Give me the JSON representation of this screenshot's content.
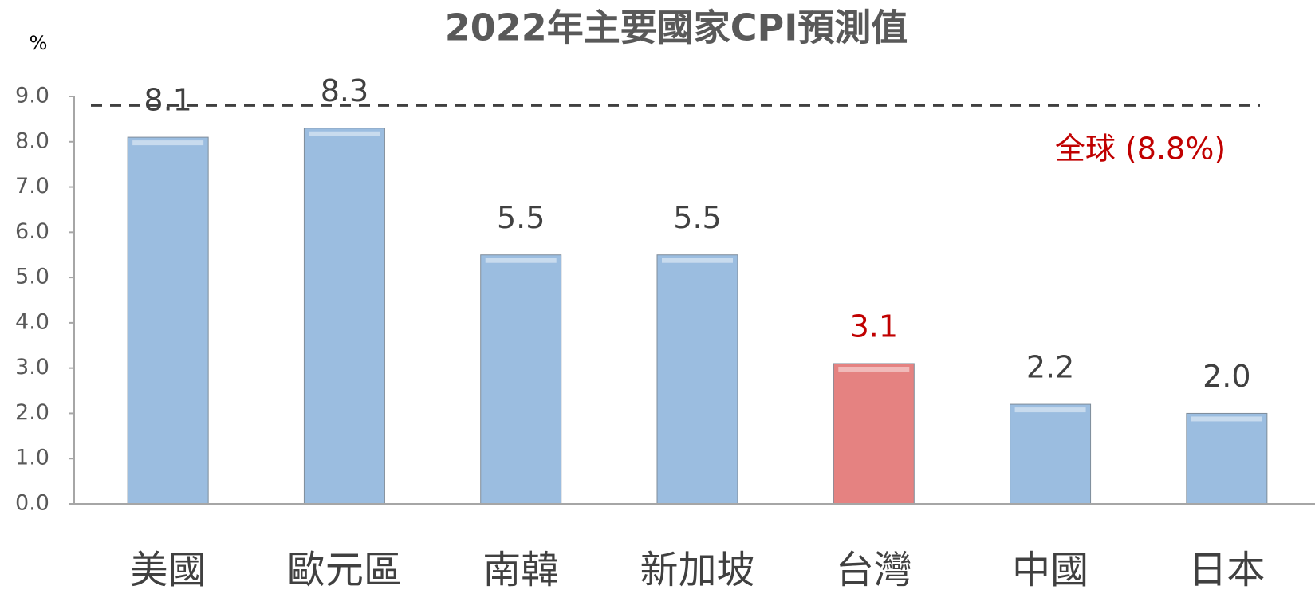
{
  "chart_data": {
    "type": "bar",
    "title": "2022年主要國家CPI預測值",
    "y_label": "%",
    "categories": [
      "美國",
      "歐元區",
      "南韓",
      "新加坡",
      "台灣",
      "中國",
      "日本"
    ],
    "values": [
      8.1,
      8.3,
      5.5,
      5.5,
      3.1,
      2.2,
      2.0
    ],
    "value_labels": [
      "8.1",
      "8.3",
      "5.5",
      "5.5",
      "3.1",
      "2.2",
      "2.0"
    ],
    "colors": [
      "#9bbde0",
      "#9bbde0",
      "#9bbde0",
      "#9bbde0",
      "#e58281",
      "#9bbde0",
      "#9bbde0"
    ],
    "label_colors": [
      "#404040",
      "#404040",
      "#404040",
      "#404040",
      "#c00000",
      "#404040",
      "#404040"
    ],
    "ylim": [
      0,
      9
    ],
    "yticks": [
      {
        "value": 0,
        "label": "0.0"
      },
      {
        "value": 1,
        "label": "1.0"
      },
      {
        "value": 2,
        "label": "2.0"
      },
      {
        "value": 3,
        "label": "3.0"
      },
      {
        "value": 4,
        "label": "4.0"
      },
      {
        "value": 5,
        "label": "5.0"
      },
      {
        "value": 6,
        "label": "6.0"
      },
      {
        "value": 7,
        "label": "7.0"
      },
      {
        "value": 8,
        "label": "8.0"
      },
      {
        "value": 9,
        "label": "9.0"
      }
    ],
    "reference_line": {
      "value": 8.8,
      "label": "全球 (8.8%)",
      "color": "#c00000"
    }
  }
}
